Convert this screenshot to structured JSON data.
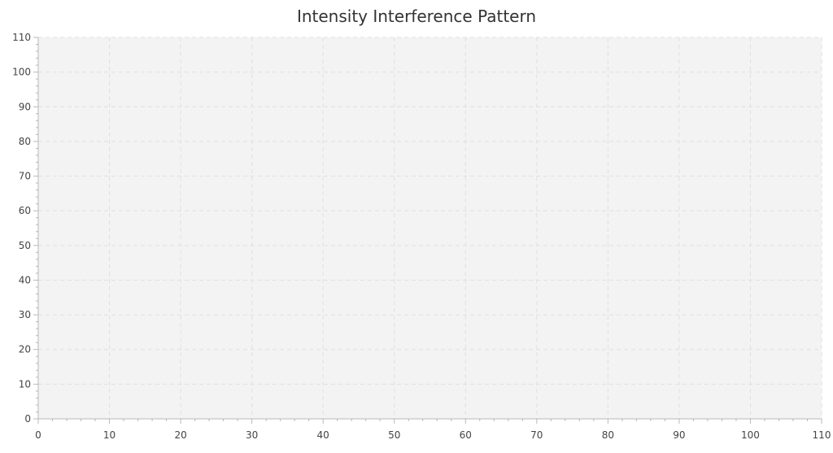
{
  "chart_data": {
    "type": "scatter",
    "title": "Intensity Interference Pattern",
    "xlabel": "",
    "ylabel": "",
    "xlim": [
      0,
      110
    ],
    "ylim": [
      0,
      110
    ],
    "x_ticks": [
      "0",
      "10",
      "20",
      "30",
      "40",
      "50",
      "60",
      "70",
      "80",
      "90",
      "100",
      "110"
    ],
    "y_ticks": [
      "0",
      "10",
      "20",
      "30",
      "40",
      "50",
      "60",
      "70",
      "80",
      "90",
      "100",
      "110"
    ],
    "x_minor_per_major": 5,
    "y_minor_per_major": 5,
    "grid": true,
    "grid_style": "dashed",
    "series": []
  },
  "colors": {
    "plot_background": "#f3f3f3",
    "grid": "#e0e0e0",
    "axis": "#b8b8b8",
    "tick_label": "#444444",
    "title": "#333333"
  }
}
